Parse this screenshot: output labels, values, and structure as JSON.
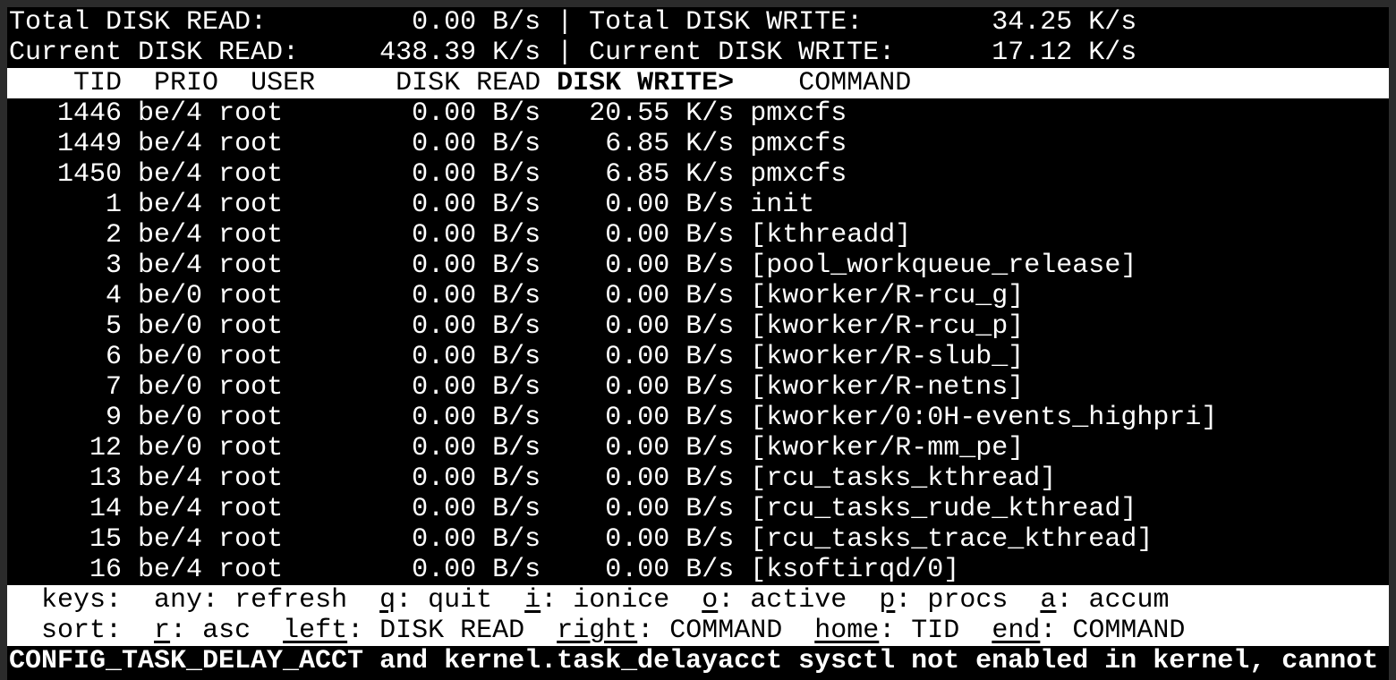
{
  "summary": {
    "total_read_label": "Total DISK READ:",
    "total_read": "0.00 B/s",
    "total_write_label": "Total DISK WRITE:",
    "total_write": "34.25 K/s",
    "current_read_label": "Current DISK READ:",
    "current_read": "438.39 K/s",
    "current_write_label": "Current DISK WRITE:",
    "current_write": "17.12 K/s"
  },
  "columns": {
    "tid": "TID",
    "prio": "PRIO",
    "user": "USER",
    "read": "DISK READ",
    "write": "DISK WRITE>",
    "command": "COMMAND"
  },
  "rows": [
    {
      "tid": "1446",
      "prio": "be/4",
      "user": "root",
      "read": "0.00 B/s",
      "write": "20.55 K/s",
      "command": "pmxcfs"
    },
    {
      "tid": "1449",
      "prio": "be/4",
      "user": "root",
      "read": "0.00 B/s",
      "write": "6.85 K/s",
      "command": "pmxcfs"
    },
    {
      "tid": "1450",
      "prio": "be/4",
      "user": "root",
      "read": "0.00 B/s",
      "write": "6.85 K/s",
      "command": "pmxcfs"
    },
    {
      "tid": "1",
      "prio": "be/4",
      "user": "root",
      "read": "0.00 B/s",
      "write": "0.00 B/s",
      "command": "init"
    },
    {
      "tid": "2",
      "prio": "be/4",
      "user": "root",
      "read": "0.00 B/s",
      "write": "0.00 B/s",
      "command": "[kthreadd]"
    },
    {
      "tid": "3",
      "prio": "be/4",
      "user": "root",
      "read": "0.00 B/s",
      "write": "0.00 B/s",
      "command": "[pool_workqueue_release]"
    },
    {
      "tid": "4",
      "prio": "be/0",
      "user": "root",
      "read": "0.00 B/s",
      "write": "0.00 B/s",
      "command": "[kworker/R-rcu_g]"
    },
    {
      "tid": "5",
      "prio": "be/0",
      "user": "root",
      "read": "0.00 B/s",
      "write": "0.00 B/s",
      "command": "[kworker/R-rcu_p]"
    },
    {
      "tid": "6",
      "prio": "be/0",
      "user": "root",
      "read": "0.00 B/s",
      "write": "0.00 B/s",
      "command": "[kworker/R-slub_]"
    },
    {
      "tid": "7",
      "prio": "be/0",
      "user": "root",
      "read": "0.00 B/s",
      "write": "0.00 B/s",
      "command": "[kworker/R-netns]"
    },
    {
      "tid": "9",
      "prio": "be/0",
      "user": "root",
      "read": "0.00 B/s",
      "write": "0.00 B/s",
      "command": "[kworker/0:0H-events_highpri]"
    },
    {
      "tid": "12",
      "prio": "be/0",
      "user": "root",
      "read": "0.00 B/s",
      "write": "0.00 B/s",
      "command": "[kworker/R-mm_pe]"
    },
    {
      "tid": "13",
      "prio": "be/4",
      "user": "root",
      "read": "0.00 B/s",
      "write": "0.00 B/s",
      "command": "[rcu_tasks_kthread]"
    },
    {
      "tid": "14",
      "prio": "be/4",
      "user": "root",
      "read": "0.00 B/s",
      "write": "0.00 B/s",
      "command": "[rcu_tasks_rude_kthread]"
    },
    {
      "tid": "15",
      "prio": "be/4",
      "user": "root",
      "read": "0.00 B/s",
      "write": "0.00 B/s",
      "command": "[rcu_tasks_trace_kthread]"
    },
    {
      "tid": "16",
      "prio": "be/4",
      "user": "root",
      "read": "0.00 B/s",
      "write": "0.00 B/s",
      "command": "[ksoftirqd/0]"
    }
  ],
  "footer": {
    "keys_label": "keys:",
    "keys": [
      {
        "key": "any",
        "desc": "refresh",
        "underline": false
      },
      {
        "key": "q",
        "desc": "quit",
        "underline": true
      },
      {
        "key": "i",
        "desc": "ionice",
        "underline": true
      },
      {
        "key": "o",
        "desc": "active",
        "underline": true
      },
      {
        "key": "p",
        "desc": "procs",
        "underline": true
      },
      {
        "key": "a",
        "desc": "accum",
        "underline": true
      }
    ],
    "sort_label": "sort:",
    "sort": [
      {
        "key": "r",
        "desc": "asc"
      },
      {
        "key": "left",
        "desc": "DISK READ"
      },
      {
        "key": "right",
        "desc": "COMMAND"
      },
      {
        "key": "home",
        "desc": "TID"
      },
      {
        "key": "end",
        "desc": "COMMAND"
      }
    ]
  },
  "status_message": "CONFIG_TASK_DELAY_ACCT and kernel.task_delayacct sysctl not enabled in kernel, cannot"
}
